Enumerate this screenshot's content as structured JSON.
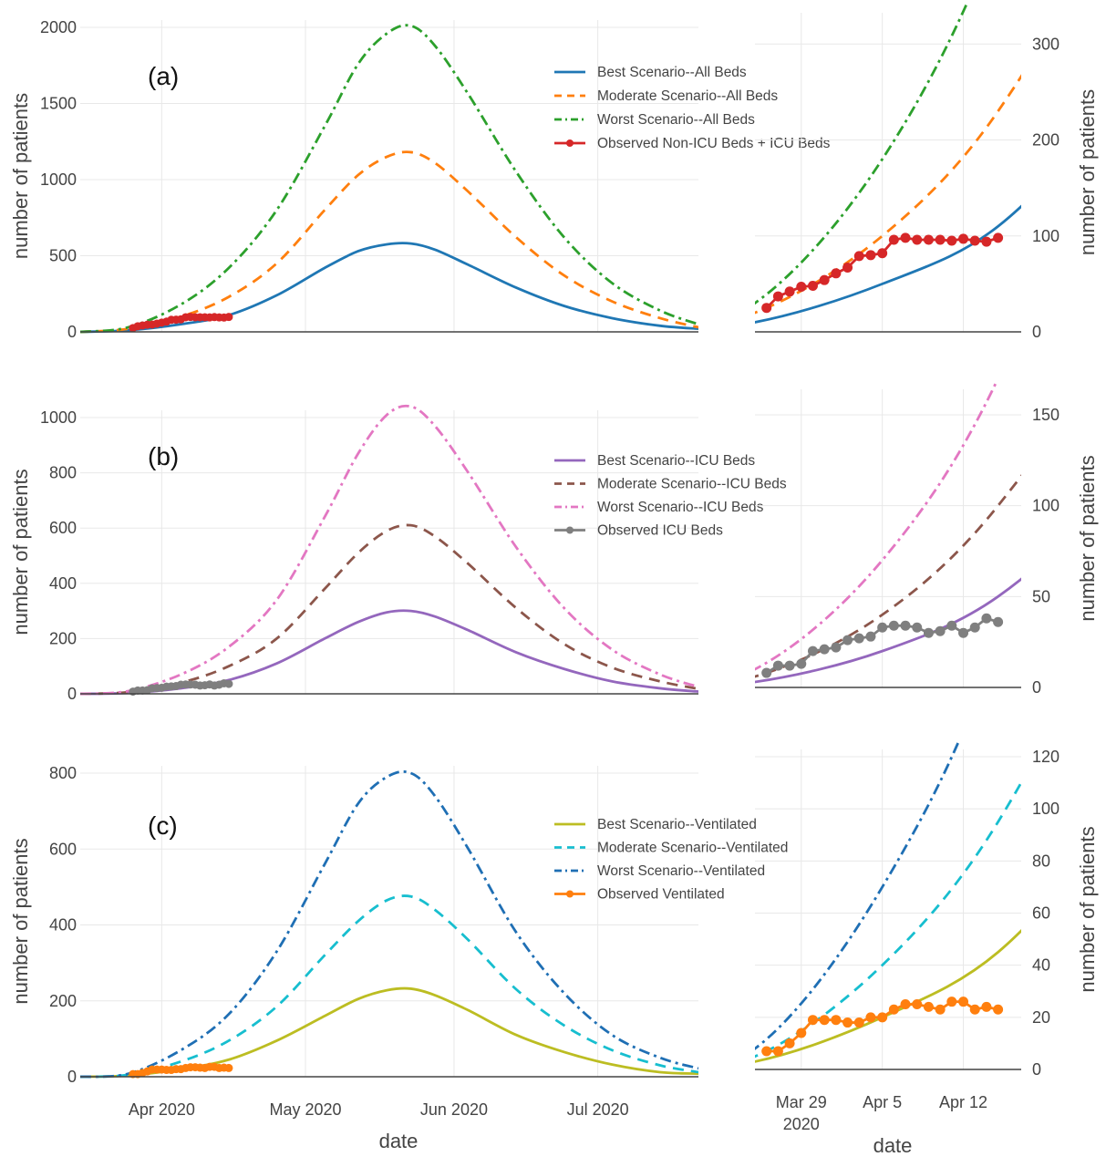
{
  "chart_data": [
    {
      "id": "a_main",
      "type": "line",
      "panel_label": "(a)",
      "xlabel": "",
      "ylabel": "number of patients",
      "xlim": [
        "2020-03-15",
        "2020-07-22"
      ],
      "ylim": [
        0,
        2000
      ],
      "yticks": [
        0,
        500,
        1000,
        1500,
        2000
      ],
      "xticks": [],
      "grid": true,
      "legend": "top-right",
      "series": [
        {
          "name": "Best Scenario--All Beds",
          "color": "#1f77b4",
          "dash": "solid",
          "markers": false,
          "x": [
            "2020-03-15",
            "2020-03-25",
            "2020-04-05",
            "2020-04-15",
            "2020-04-25",
            "2020-05-05",
            "2020-05-12",
            "2020-05-18",
            "2020-05-23",
            "2020-05-28",
            "2020-06-04",
            "2020-06-14",
            "2020-06-24",
            "2020-07-04",
            "2020-07-14",
            "2020-07-22"
          ],
          "y": [
            0,
            10,
            50,
            110,
            240,
            420,
            530,
            575,
            580,
            540,
            440,
            290,
            170,
            90,
            40,
            20
          ]
        },
        {
          "name": "Moderate Scenario--All Beds",
          "color": "#ff7f0e",
          "dash": "dash",
          "markers": false,
          "x": [
            "2020-03-15",
            "2020-03-25",
            "2020-04-05",
            "2020-04-15",
            "2020-04-25",
            "2020-05-05",
            "2020-05-12",
            "2020-05-18",
            "2020-05-23",
            "2020-05-28",
            "2020-06-04",
            "2020-06-14",
            "2020-06-24",
            "2020-07-04",
            "2020-07-14",
            "2020-07-22"
          ],
          "y": [
            0,
            20,
            100,
            230,
            450,
            800,
            1030,
            1150,
            1180,
            1110,
            920,
            620,
            370,
            200,
            90,
            30
          ]
        },
        {
          "name": "Worst Scenario--All Beds",
          "color": "#2ca02c",
          "dash": "dashdot",
          "markers": false,
          "x": [
            "2020-03-15",
            "2020-03-25",
            "2020-04-05",
            "2020-04-15",
            "2020-04-25",
            "2020-05-05",
            "2020-05-12",
            "2020-05-18",
            "2020-05-23",
            "2020-05-28",
            "2020-06-04",
            "2020-06-14",
            "2020-06-24",
            "2020-07-04",
            "2020-07-14",
            "2020-07-22"
          ],
          "y": [
            0,
            30,
            180,
            420,
            800,
            1350,
            1760,
            1960,
            2010,
            1880,
            1560,
            1050,
            620,
            320,
            140,
            50
          ]
        },
        {
          "name": "Observed Non-ICU Beds + ICU Beds",
          "color": "#d62728",
          "dash": "solid",
          "markers": true,
          "x": [
            "2020-03-26",
            "2020-03-27",
            "2020-03-28",
            "2020-03-29",
            "2020-03-30",
            "2020-03-31",
            "2020-04-01",
            "2020-04-02",
            "2020-04-03",
            "2020-04-04",
            "2020-04-05",
            "2020-04-06",
            "2020-04-07",
            "2020-04-08",
            "2020-04-09",
            "2020-04-10",
            "2020-04-11",
            "2020-04-12",
            "2020-04-13",
            "2020-04-14",
            "2020-04-15"
          ],
          "y": [
            25,
            37,
            42,
            47,
            48,
            54,
            61,
            67,
            79,
            80,
            82,
            96,
            98,
            96,
            96,
            96,
            95,
            97,
            95,
            94,
            98
          ]
        }
      ]
    },
    {
      "id": "a_zoom",
      "type": "line",
      "xlabel": "",
      "ylabel": "number of patients",
      "xlim": [
        "2020-03-25",
        "2020-04-17"
      ],
      "ylim": [
        0,
        325
      ],
      "yticks": [
        0,
        100,
        200,
        300
      ],
      "xticks": [],
      "grid": true,
      "series_from": "a_main"
    },
    {
      "id": "b_main",
      "type": "line",
      "panel_label": "(b)",
      "xlabel": "",
      "ylabel": "number of patients",
      "xlim": [
        "2020-03-15",
        "2020-07-22"
      ],
      "ylim": [
        0,
        1000
      ],
      "yticks": [
        0,
        200,
        400,
        600,
        800,
        1000
      ],
      "xticks": [],
      "grid": true,
      "legend": "top-right",
      "series": [
        {
          "name": "Best Scenario--ICU Beds",
          "color": "#9467bd",
          "dash": "solid",
          "markers": false,
          "x": [
            "2020-03-15",
            "2020-03-25",
            "2020-04-05",
            "2020-04-15",
            "2020-04-25",
            "2020-05-05",
            "2020-05-12",
            "2020-05-18",
            "2020-05-23",
            "2020-05-28",
            "2020-06-04",
            "2020-06-14",
            "2020-06-24",
            "2020-07-04",
            "2020-07-14",
            "2020-07-22"
          ],
          "y": [
            0,
            3,
            20,
            50,
            110,
            200,
            260,
            295,
            300,
            280,
            230,
            150,
            90,
            45,
            20,
            8
          ]
        },
        {
          "name": "Moderate Scenario--ICU Beds",
          "color": "#8c564b",
          "dash": "dash",
          "markers": false,
          "x": [
            "2020-03-15",
            "2020-03-25",
            "2020-04-05",
            "2020-04-15",
            "2020-04-25",
            "2020-05-05",
            "2020-05-12",
            "2020-05-18",
            "2020-05-23",
            "2020-05-28",
            "2020-06-04",
            "2020-06-14",
            "2020-06-24",
            "2020-07-04",
            "2020-07-14",
            "2020-07-22"
          ],
          "y": [
            0,
            6,
            40,
            100,
            200,
            380,
            510,
            590,
            610,
            570,
            470,
            310,
            180,
            95,
            45,
            18
          ]
        },
        {
          "name": "Worst Scenario--ICU Beds",
          "color": "#e377c2",
          "dash": "dashdot",
          "markers": false,
          "x": [
            "2020-03-15",
            "2020-03-25",
            "2020-04-05",
            "2020-04-15",
            "2020-04-25",
            "2020-05-05",
            "2020-05-12",
            "2020-05-18",
            "2020-05-23",
            "2020-05-28",
            "2020-06-04",
            "2020-06-14",
            "2020-06-24",
            "2020-07-04",
            "2020-07-14",
            "2020-07-22"
          ],
          "y": [
            0,
            10,
            70,
            170,
            340,
            640,
            870,
            1010,
            1040,
            970,
            800,
            530,
            310,
            160,
            70,
            25
          ]
        },
        {
          "name": "Observed ICU Beds",
          "color": "#7f7f7f",
          "dash": "solid",
          "markers": true,
          "x": [
            "2020-03-26",
            "2020-03-27",
            "2020-03-28",
            "2020-03-29",
            "2020-03-30",
            "2020-03-31",
            "2020-04-01",
            "2020-04-02",
            "2020-04-03",
            "2020-04-04",
            "2020-04-05",
            "2020-04-06",
            "2020-04-07",
            "2020-04-08",
            "2020-04-09",
            "2020-04-10",
            "2020-04-11",
            "2020-04-12",
            "2020-04-13",
            "2020-04-14",
            "2020-04-15"
          ],
          "y": [
            8,
            12,
            12,
            13,
            20,
            21,
            22,
            26,
            27,
            28,
            33,
            34,
            34,
            33,
            30,
            31,
            34,
            30,
            33,
            38,
            36
          ]
        }
      ]
    },
    {
      "id": "b_zoom",
      "type": "line",
      "xlabel": "",
      "ylabel": "number of patients",
      "xlim": [
        "2020-03-25",
        "2020-04-17"
      ],
      "ylim": [
        0,
        160
      ],
      "yticks": [
        0,
        50,
        100,
        150
      ],
      "xticks": [],
      "grid": true,
      "series_from": "b_main"
    },
    {
      "id": "c_main",
      "type": "line",
      "panel_label": "(c)",
      "xlabel": "date",
      "ylabel": "number of patients",
      "xlim": [
        "2020-03-15",
        "2020-07-22"
      ],
      "ylim": [
        0,
        800
      ],
      "yticks": [
        0,
        200,
        400,
        600,
        800
      ],
      "xticks": [
        {
          "at": "2020-04-01",
          "label": "Apr 2020"
        },
        {
          "at": "2020-05-01",
          "label": "May 2020"
        },
        {
          "at": "2020-06-01",
          "label": "Jun 2020"
        },
        {
          "at": "2020-07-01",
          "label": "Jul 2020"
        }
      ],
      "grid": true,
      "legend": "top-right",
      "series": [
        {
          "name": "Best Scenario--Ventilated",
          "color": "#bcbd22",
          "dash": "solid",
          "markers": false,
          "x": [
            "2020-03-15",
            "2020-03-25",
            "2020-04-05",
            "2020-04-15",
            "2020-04-25",
            "2020-05-05",
            "2020-05-12",
            "2020-05-18",
            "2020-05-23",
            "2020-05-28",
            "2020-06-04",
            "2020-06-14",
            "2020-06-24",
            "2020-07-04",
            "2020-07-14",
            "2020-07-22"
          ],
          "y": [
            0,
            3,
            20,
            45,
            95,
            160,
            205,
            228,
            232,
            215,
            175,
            110,
            65,
            32,
            12,
            8
          ]
        },
        {
          "name": "Moderate Scenario--Ventilated",
          "color": "#17becf",
          "dash": "dash",
          "markers": false,
          "x": [
            "2020-03-15",
            "2020-03-25",
            "2020-04-05",
            "2020-04-15",
            "2020-04-25",
            "2020-05-05",
            "2020-05-12",
            "2020-05-18",
            "2020-05-23",
            "2020-05-28",
            "2020-06-04",
            "2020-06-14",
            "2020-06-24",
            "2020-07-04",
            "2020-07-14",
            "2020-07-22"
          ],
          "y": [
            0,
            5,
            40,
            95,
            185,
            320,
            410,
            465,
            475,
            440,
            360,
            230,
            135,
            70,
            30,
            12
          ]
        },
        {
          "name": "Worst Scenario--Ventilated",
          "color": "#1f6fb4",
          "dash": "dashdot",
          "markers": false,
          "x": [
            "2020-03-15",
            "2020-03-25",
            "2020-04-05",
            "2020-04-15",
            "2020-04-25",
            "2020-05-05",
            "2020-05-12",
            "2020-05-18",
            "2020-05-23",
            "2020-05-28",
            "2020-06-04",
            "2020-06-14",
            "2020-06-24",
            "2020-07-04",
            "2020-07-14",
            "2020-07-22"
          ],
          "y": [
            0,
            8,
            70,
            165,
            330,
            560,
            720,
            790,
            800,
            740,
            600,
            380,
            220,
            110,
            50,
            22
          ]
        },
        {
          "name": "Observed Ventilated",
          "color": "#ff7f0e",
          "dash": "solid",
          "markers": true,
          "x": [
            "2020-03-26",
            "2020-03-27",
            "2020-03-28",
            "2020-03-29",
            "2020-03-30",
            "2020-03-31",
            "2020-04-01",
            "2020-04-02",
            "2020-04-03",
            "2020-04-04",
            "2020-04-05",
            "2020-04-06",
            "2020-04-07",
            "2020-04-08",
            "2020-04-09",
            "2020-04-10",
            "2020-04-11",
            "2020-04-12",
            "2020-04-13",
            "2020-04-14",
            "2020-04-15"
          ],
          "y": [
            7,
            7,
            10,
            14,
            19,
            19,
            19,
            18,
            18,
            20,
            20,
            23,
            25,
            25,
            24,
            23,
            26,
            26,
            23,
            24,
            23
          ]
        }
      ]
    },
    {
      "id": "c_zoom",
      "type": "line",
      "xlabel": "date",
      "ylabel": "number of patients",
      "xlim": [
        "2020-03-25",
        "2020-04-17"
      ],
      "ylim": [
        0,
        120
      ],
      "yticks": [
        0,
        20,
        40,
        60,
        80,
        100,
        120
      ],
      "xticks": [
        {
          "at": "2020-03-29",
          "label": "Mar 29",
          "label2": "2020"
        },
        {
          "at": "2020-04-05",
          "label": "Apr 5"
        },
        {
          "at": "2020-04-12",
          "label": "Apr 12"
        }
      ],
      "grid": true,
      "series_from": "c_main"
    }
  ]
}
